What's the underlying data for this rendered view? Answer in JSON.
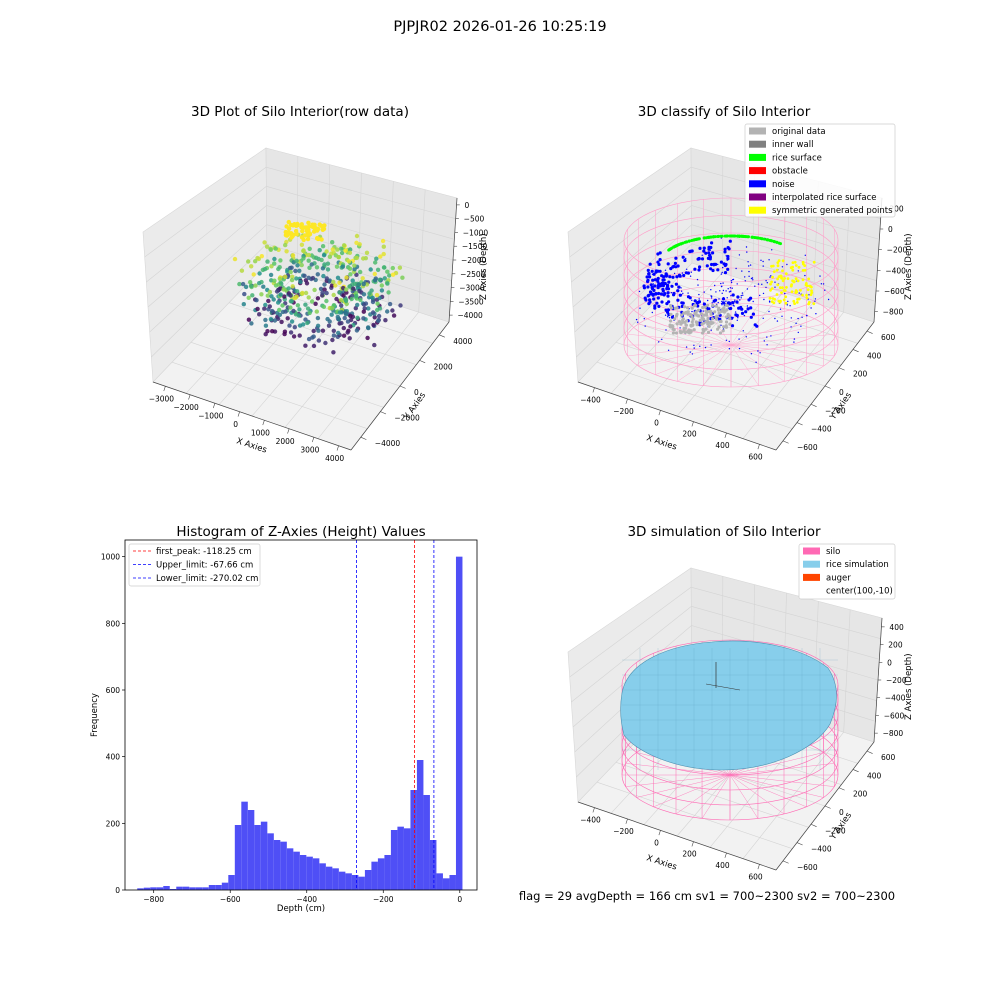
{
  "figure": {
    "suptitle": "PJPJR02 2026-01-26 10:25:19",
    "footer": "flag = 29  avgDepth = 166 cm  sv1 = 700~2300  sv2 = 700~2300"
  },
  "panels": {
    "raw": {
      "title": "3D Plot of Silo Interior(row data)",
      "xlabel": "X Axies",
      "ylabel": "Y Axies",
      "zlabel": "Z Axies (Depth)",
      "x_ticks": [
        "−3000",
        "−2000",
        "−1000",
        "0",
        "1000",
        "2000",
        "3000",
        "4000"
      ],
      "y_ticks": [
        "−4000",
        "−2000",
        "0",
        "2000",
        "4000"
      ],
      "z_ticks": [
        "0",
        "−500",
        "−1000",
        "−1500",
        "−2000",
        "−2500",
        "−3000",
        "−3500",
        "−4000"
      ],
      "colormap": "viridis"
    },
    "classify": {
      "title": "3D classify of Silo Interior",
      "xlabel": "X Axies",
      "ylabel": "Y Axies",
      "zlabel": "Z Axies (Depth)",
      "x_ticks": [
        "−400",
        "−200",
        "0",
        "200",
        "400",
        "600"
      ],
      "y_ticks": [
        "−600",
        "−400",
        "−200",
        "0",
        "200",
        "400",
        "600"
      ],
      "z_ticks": [
        "200",
        "0",
        "−200",
        "−400",
        "−600",
        "−800"
      ],
      "legend": [
        {
          "label": "original data",
          "color": "#b3b3b3"
        },
        {
          "label": "inner wall",
          "color": "#808080"
        },
        {
          "label": "rice surface",
          "color": "#00ff00"
        },
        {
          "label": "obstacle",
          "color": "#ff0000"
        },
        {
          "label": "noise",
          "color": "#0000ff"
        },
        {
          "label": "interpolated rice surface",
          "color": "#800080"
        },
        {
          "label": "symmetric generated points",
          "color": "#ffff00"
        }
      ],
      "wireframe_color": "#ff9ec9"
    },
    "simulation": {
      "title": "3D simulation of Silo Interior",
      "xlabel": "X Axies",
      "ylabel": "Y Axies",
      "zlabel": "Z Axies (Depth)",
      "x_ticks": [
        "−400",
        "−200",
        "0",
        "200",
        "400",
        "600"
      ],
      "y_ticks": [
        "−600",
        "−400",
        "−200",
        "0",
        "200",
        "400",
        "600"
      ],
      "z_ticks": [
        "400",
        "200",
        "0",
        "−200",
        "−400",
        "−600",
        "−800"
      ],
      "legend": [
        {
          "label": "silo",
          "color": "#ff69b4"
        },
        {
          "label": "rice simulation",
          "color": "#87ceeb"
        },
        {
          "label": "auger",
          "color": "#ff4500"
        },
        {
          "label": "center(100,-10)",
          "color": ""
        }
      ]
    }
  },
  "chart_data": {
    "type": "bar",
    "title": "Histogram of Z-Axies (Height) Values",
    "xlabel": "Depth (cm)",
    "ylabel": "Frequency",
    "xlim": [
      -875,
      45
    ],
    "ylim": [
      0,
      1050
    ],
    "x_ticks": [
      -800,
      -600,
      -400,
      -200,
      0
    ],
    "y_ticks": [
      0,
      200,
      400,
      600,
      800,
      1000
    ],
    "bin_width": 17,
    "bins": [
      {
        "left": -843,
        "count": 5
      },
      {
        "left": -826,
        "count": 7
      },
      {
        "left": -809,
        "count": 8
      },
      {
        "left": -792,
        "count": 8
      },
      {
        "left": -775,
        "count": 12
      },
      {
        "left": -758,
        "count": 3
      },
      {
        "left": -741,
        "count": 10
      },
      {
        "left": -724,
        "count": 10
      },
      {
        "left": -707,
        "count": 8
      },
      {
        "left": -690,
        "count": 8
      },
      {
        "left": -673,
        "count": 8
      },
      {
        "left": -656,
        "count": 15
      },
      {
        "left": -639,
        "count": 15
      },
      {
        "left": -622,
        "count": 22
      },
      {
        "left": -605,
        "count": 45
      },
      {
        "left": -588,
        "count": 195
      },
      {
        "left": -571,
        "count": 265
      },
      {
        "left": -554,
        "count": 240
      },
      {
        "left": -537,
        "count": 195
      },
      {
        "left": -520,
        "count": 205
      },
      {
        "left": -503,
        "count": 170
      },
      {
        "left": -486,
        "count": 150
      },
      {
        "left": -469,
        "count": 145
      },
      {
        "left": -452,
        "count": 125
      },
      {
        "left": -435,
        "count": 115
      },
      {
        "left": -418,
        "count": 105
      },
      {
        "left": -401,
        "count": 100
      },
      {
        "left": -384,
        "count": 95
      },
      {
        "left": -367,
        "count": 80
      },
      {
        "left": -350,
        "count": 70
      },
      {
        "left": -333,
        "count": 65
      },
      {
        "left": -316,
        "count": 55
      },
      {
        "left": -299,
        "count": 50
      },
      {
        "left": -282,
        "count": 45
      },
      {
        "left": -265,
        "count": 40
      },
      {
        "left": -248,
        "count": 60
      },
      {
        "left": -231,
        "count": 85
      },
      {
        "left": -214,
        "count": 95
      },
      {
        "left": -197,
        "count": 105
      },
      {
        "left": -180,
        "count": 180
      },
      {
        "left": -163,
        "count": 190
      },
      {
        "left": -146,
        "count": 185
      },
      {
        "left": -129,
        "count": 300
      },
      {
        "left": -112,
        "count": 390
      },
      {
        "left": -95,
        "count": 285
      },
      {
        "left": -78,
        "count": 150
      },
      {
        "left": -61,
        "count": 50
      },
      {
        "left": -44,
        "count": 35
      },
      {
        "left": -27,
        "count": 45
      },
      {
        "left": -10,
        "count": 1000
      }
    ],
    "vlines": [
      {
        "label": "first_peak: -118.25 cm",
        "x": -118.25,
        "color": "#ff0000"
      },
      {
        "label": "Upper_limit: -67.66 cm",
        "x": -67.66,
        "color": "#0000ff"
      },
      {
        "label": "Lower_limit: -270.02 cm",
        "x": -270.02,
        "color": "#0000ff"
      }
    ],
    "bar_color": "#4f4ff6",
    "grid": false,
    "legend_position": "upper-left"
  }
}
